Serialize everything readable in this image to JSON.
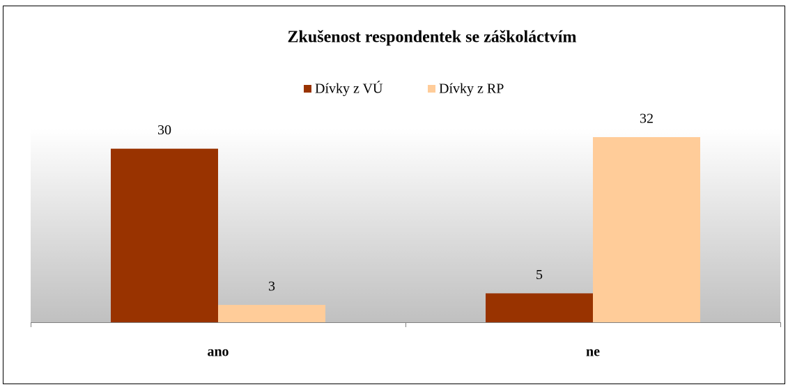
{
  "chart_data": {
    "type": "bar",
    "title": "Zkušenost respondentek se záškoláctvím",
    "categories": [
      "ano",
      "ne"
    ],
    "series": [
      {
        "name": "Dívky z VÚ",
        "color": "#993300",
        "values": [
          30,
          5
        ]
      },
      {
        "name": "Dívky z RP",
        "color": "#ffcc99",
        "values": [
          3,
          32
        ]
      }
    ],
    "legend": "top"
  }
}
